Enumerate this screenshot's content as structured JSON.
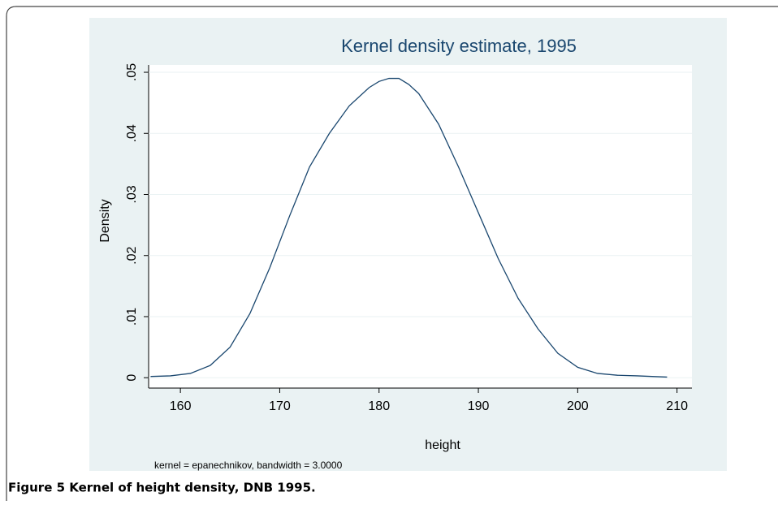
{
  "chart_data": {
    "type": "line",
    "title": "Kernel density estimate, 1995",
    "x_label": "height",
    "y_label": "Density",
    "note": "kernel = epanechnikov, bandwidth = 3.0000",
    "x": [
      157,
      159,
      161,
      163,
      165,
      167,
      169,
      171,
      173,
      175,
      177,
      179,
      180,
      181,
      182,
      183,
      184,
      186,
      188,
      190,
      192,
      194,
      196,
      198,
      200,
      202,
      204,
      206,
      209
    ],
    "values": [
      0.0002,
      0.0003,
      0.0007,
      0.002,
      0.005,
      0.0105,
      0.018,
      0.0265,
      0.0345,
      0.04,
      0.0445,
      0.0475,
      0.0485,
      0.049,
      0.049,
      0.048,
      0.0465,
      0.0415,
      0.0345,
      0.027,
      0.0195,
      0.013,
      0.008,
      0.004,
      0.0017,
      0.0007,
      0.0004,
      0.0003,
      0.0001
    ],
    "color": "#1a476f",
    "xlim": [
      156.8,
      211.5
    ],
    "xticks": [
      160,
      170,
      180,
      190,
      200,
      210
    ],
    "ylim": [
      -0.0017,
      0.0512
    ],
    "yticks": [
      0,
      {
        "value": 0.01,
        "label": ".01"
      },
      {
        "value": 0.02,
        "label": ".02"
      },
      {
        "value": 0.03,
        "label": ".03"
      },
      {
        "value": 0.04,
        "label": ".04"
      },
      {
        "value": 0.05,
        "label": ".05"
      }
    ],
    "grid": true
  },
  "caption": "Figure 5 Kernel of height density, DNB 1995."
}
